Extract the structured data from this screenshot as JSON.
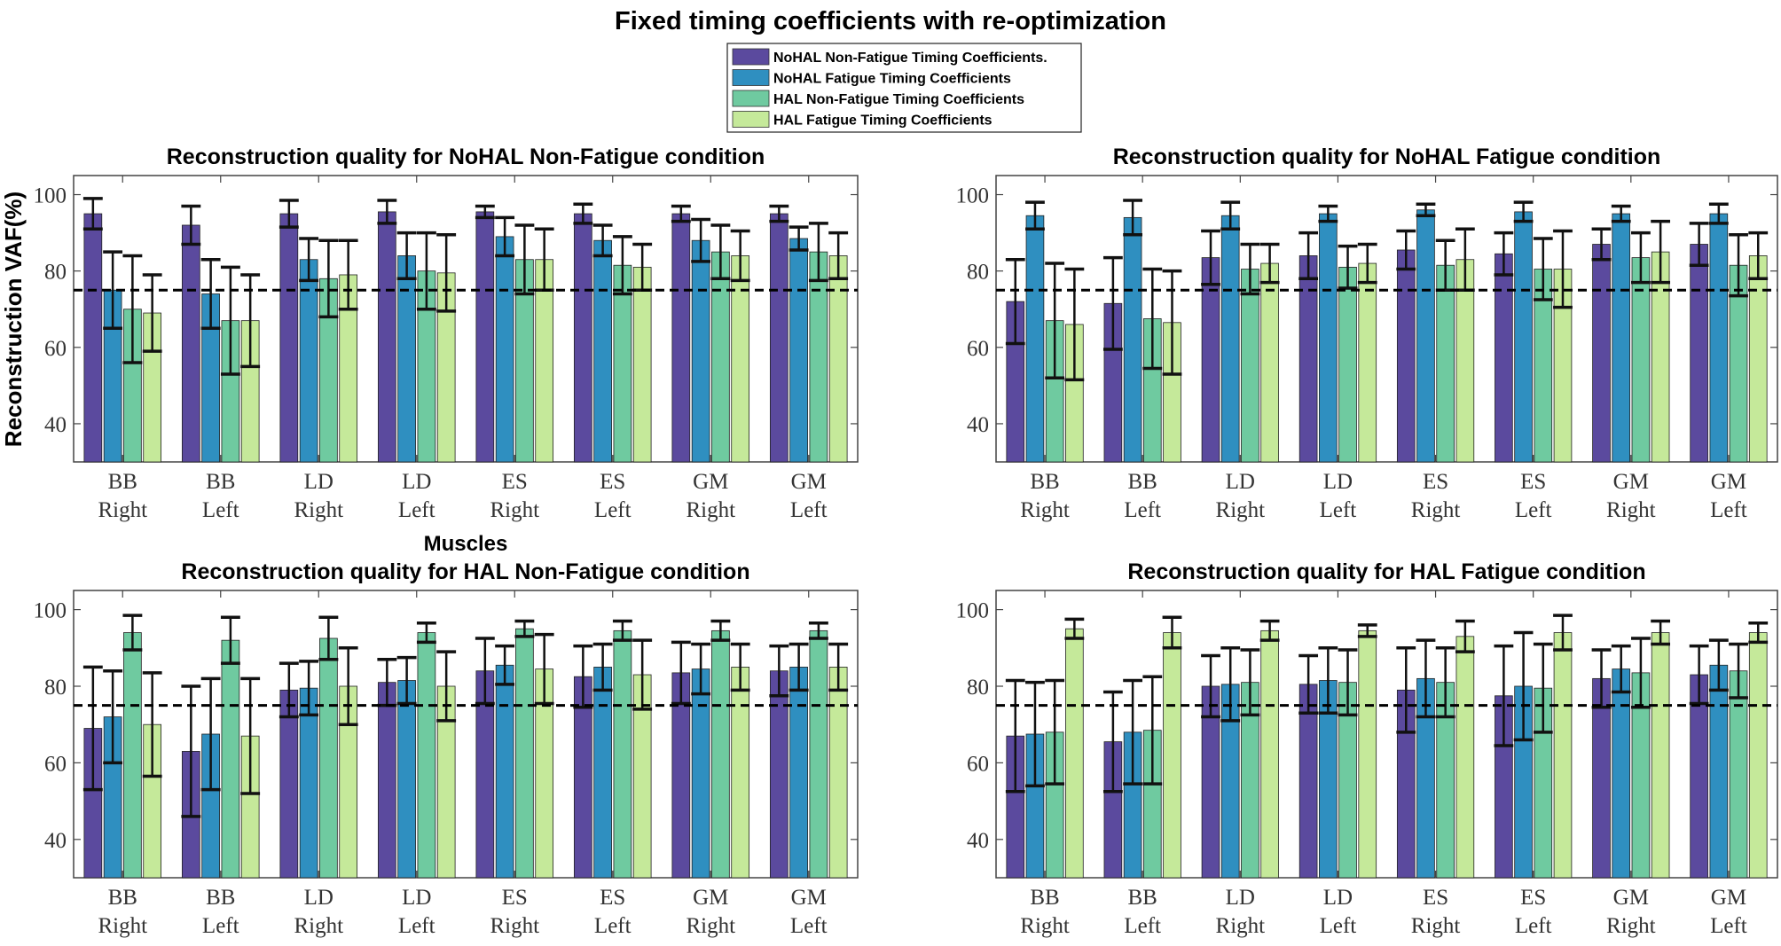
{
  "figure_title": "Fixed timing coefficients with re-optimization",
  "ylabel": "Reconstruction VAF(%)",
  "xlabel": "Muscles",
  "legend": [
    {
      "label": "NoHAL Non-Fatigue Timing Coefficients.",
      "color": "#5b4a9e"
    },
    {
      "label": "NoHAL Fatigue Timing Coefficients",
      "color": "#2f8fc0"
    },
    {
      "label": "HAL Non-Fatigue Timing Coefficients",
      "color": "#6fcaa0"
    },
    {
      "label": "HAL Fatigue Timing Coefficients",
      "color": "#c5e99a"
    }
  ],
  "chart_data": [
    {
      "type": "bar",
      "title": "Reconstruction quality for NoHAL Non-Fatigue condition",
      "categories": [
        [
          "BB",
          "Right"
        ],
        [
          "BB",
          "Left"
        ],
        [
          "LD",
          "Right"
        ],
        [
          "LD",
          "Left"
        ],
        [
          "ES",
          "Right"
        ],
        [
          "ES",
          "Left"
        ],
        [
          "GM",
          "Right"
        ],
        [
          "GM",
          "Left"
        ]
      ],
      "ylim": [
        30,
        105
      ],
      "yticks": [
        40,
        60,
        80,
        100
      ],
      "threshold": 75,
      "series": [
        {
          "name": "NoHAL Non-Fatigue Timing Coefficients.",
          "values": [
            95,
            92,
            95,
            95.5,
            95.5,
            95,
            95,
            95
          ],
          "err": [
            4,
            5,
            3.5,
            3,
            1.5,
            2.5,
            2,
            2
          ]
        },
        {
          "name": "NoHAL Fatigue Timing Coefficients",
          "values": [
            75,
            74,
            83,
            84,
            89,
            88,
            88,
            88.5
          ],
          "err": [
            10,
            9,
            5.5,
            6,
            5,
            4,
            5.5,
            3
          ]
        },
        {
          "name": "HAL Non-Fatigue Timing Coefficients",
          "values": [
            70,
            67,
            78,
            80,
            83,
            81.5,
            85,
            85
          ],
          "err": [
            14,
            14,
            10,
            10,
            9,
            7.5,
            7,
            7.5
          ]
        },
        {
          "name": "HAL Fatigue Timing Coefficients",
          "values": [
            69,
            67,
            79,
            79.5,
            83,
            81,
            84,
            84
          ],
          "err": [
            10,
            12,
            9,
            10,
            8,
            6,
            6.5,
            6
          ]
        }
      ]
    },
    {
      "type": "bar",
      "title": "Reconstruction quality for NoHAL Fatigue condition",
      "categories": [
        [
          "BB",
          "Right"
        ],
        [
          "BB",
          "Left"
        ],
        [
          "LD",
          "Right"
        ],
        [
          "LD",
          "Left"
        ],
        [
          "ES",
          "Right"
        ],
        [
          "ES",
          "Left"
        ],
        [
          "GM",
          "Right"
        ],
        [
          "GM",
          "Left"
        ]
      ],
      "ylim": [
        30,
        105
      ],
      "yticks": [
        40,
        60,
        80,
        100
      ],
      "threshold": 75,
      "series": [
        {
          "name": "NoHAL Non-Fatigue Timing Coefficients.",
          "values": [
            72,
            71.5,
            83.5,
            84,
            85.5,
            84.5,
            87,
            87
          ],
          "err": [
            11,
            12,
            7,
            6,
            5,
            5.5,
            4,
            5.5
          ]
        },
        {
          "name": "NoHAL Fatigue Timing Coefficients",
          "values": [
            94.5,
            94,
            94.5,
            95,
            96,
            95.5,
            95,
            95
          ],
          "err": [
            3.5,
            4.5,
            3.5,
            2,
            1.5,
            2.5,
            2,
            2.5
          ]
        },
        {
          "name": "HAL Non-Fatigue Timing Coefficients",
          "values": [
            67,
            67.5,
            80.5,
            81,
            81.5,
            80.5,
            83.5,
            81.5
          ],
          "err": [
            15,
            13,
            6.5,
            5.5,
            6.5,
            8,
            6.5,
            8
          ]
        },
        {
          "name": "HAL Fatigue Timing Coefficients",
          "values": [
            66,
            66.5,
            82,
            82,
            83,
            80.5,
            85,
            84
          ],
          "err": [
            14.5,
            13.5,
            5,
            5,
            8,
            10,
            8,
            6
          ]
        }
      ]
    },
    {
      "type": "bar",
      "title": "Reconstruction quality for HAL Non-Fatigue condition",
      "categories": [
        [
          "BB",
          "Right"
        ],
        [
          "BB",
          "Left"
        ],
        [
          "LD",
          "Right"
        ],
        [
          "LD",
          "Left"
        ],
        [
          "ES",
          "Right"
        ],
        [
          "ES",
          "Left"
        ],
        [
          "GM",
          "Right"
        ],
        [
          "GM",
          "Left"
        ]
      ],
      "ylim": [
        30,
        105
      ],
      "yticks": [
        40,
        60,
        80,
        100
      ],
      "threshold": 75,
      "series": [
        {
          "name": "NoHAL Non-Fatigue Timing Coefficients.",
          "values": [
            69,
            63,
            79,
            81,
            84,
            82.5,
            83.5,
            84
          ],
          "err": [
            16,
            17,
            7,
            6,
            8.5,
            8,
            8,
            6.5
          ]
        },
        {
          "name": "NoHAL Fatigue Timing Coefficients",
          "values": [
            72,
            67.5,
            79.5,
            81.5,
            85.5,
            85,
            84.5,
            85
          ],
          "err": [
            12,
            14.5,
            7,
            6,
            5,
            6,
            6.5,
            6
          ]
        },
        {
          "name": "HAL Non-Fatigue Timing Coefficients",
          "values": [
            94,
            92,
            92.5,
            94,
            95,
            94.5,
            94.5,
            94.5
          ],
          "err": [
            4.5,
            6,
            5.5,
            2.5,
            2,
            2.5,
            2.5,
            2
          ]
        },
        {
          "name": "HAL Fatigue Timing Coefficients",
          "values": [
            70,
            67,
            80,
            80,
            84.5,
            83,
            85,
            85
          ],
          "err": [
            13.5,
            15,
            10,
            9,
            9,
            9,
            6,
            6
          ]
        }
      ]
    },
    {
      "type": "bar",
      "title": "Reconstruction quality for HAL Fatigue condition",
      "categories": [
        [
          "BB",
          "Right"
        ],
        [
          "BB",
          "Left"
        ],
        [
          "LD",
          "Right"
        ],
        [
          "LD",
          "Left"
        ],
        [
          "ES",
          "Right"
        ],
        [
          "ES",
          "Left"
        ],
        [
          "GM",
          "Right"
        ],
        [
          "GM",
          "Left"
        ]
      ],
      "ylim": [
        30,
        105
      ],
      "yticks": [
        40,
        60,
        80,
        100
      ],
      "threshold": 75,
      "series": [
        {
          "name": "NoHAL Non-Fatigue Timing Coefficients.",
          "values": [
            67,
            65.5,
            80,
            80.5,
            79,
            77.5,
            82,
            83
          ],
          "err": [
            14.5,
            13,
            8,
            7.5,
            11,
            13,
            7.5,
            7.5
          ]
        },
        {
          "name": "NoHAL Fatigue Timing Coefficients",
          "values": [
            67.5,
            68,
            80.5,
            81.5,
            82,
            80,
            84.5,
            85.5
          ],
          "err": [
            13.5,
            13.5,
            9.5,
            8.5,
            10,
            14,
            6,
            6.5
          ]
        },
        {
          "name": "HAL Non-Fatigue Timing Coefficients",
          "values": [
            68,
            68.5,
            81,
            81,
            81,
            79.5,
            83.5,
            84
          ],
          "err": [
            13.5,
            14,
            8.5,
            8.5,
            9,
            11.5,
            9,
            7
          ]
        },
        {
          "name": "HAL Fatigue Timing Coefficients",
          "values": [
            95,
            94,
            94.5,
            94.5,
            93,
            94,
            94,
            94
          ],
          "err": [
            2.5,
            4,
            2.5,
            1.5,
            4,
            4.5,
            3,
            2.5
          ]
        }
      ]
    }
  ]
}
